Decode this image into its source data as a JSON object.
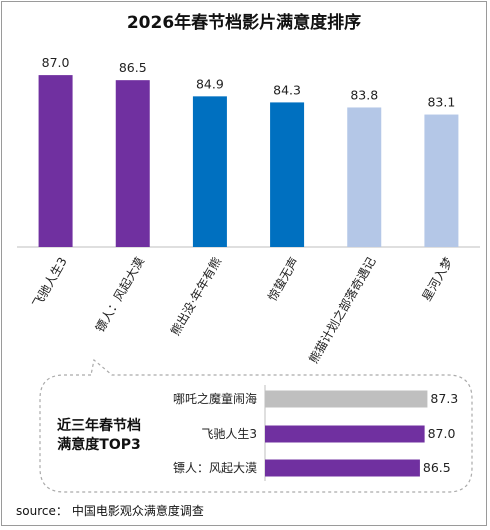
{
  "title": "2026年春节档影片满意度排序",
  "source_prefix": "source：",
  "source_text": "中国电影观众满意度调查",
  "colors": {
    "purple": "#7030A0",
    "blue": "#0070C0",
    "lightblue": "#B4C7E7",
    "gray": "#BFBFBF",
    "axis": "#BFBFBF",
    "dashed": "#AAAAAA"
  },
  "chart_data": [
    {
      "type": "bar",
      "title": "2026年春节档影片满意度排序",
      "categories": [
        "飞驰人生3",
        "镖人：风起大漠",
        "熊出没·年年有熊",
        "惊蛰无声",
        "熊猫计划之部落奇遇记",
        "星河入梦"
      ],
      "values": [
        87.0,
        86.5,
        84.9,
        84.3,
        83.8,
        83.1
      ],
      "value_labels": [
        "87.0",
        "86.5",
        "84.9",
        "84.3",
        "83.8",
        "83.1"
      ],
      "bar_colors": [
        "#7030A0",
        "#7030A0",
        "#0070C0",
        "#0070C0",
        "#B4C7E7",
        "#B4C7E7"
      ],
      "ylim": [
        70,
        88
      ],
      "grid": false,
      "xlabel": "",
      "ylabel": ""
    },
    {
      "type": "bar",
      "orientation": "horizontal",
      "title": "近三年春节档满意度TOP3",
      "title_lines": [
        "近三年春节档",
        "满意度TOP3"
      ],
      "categories": [
        "哪吒之魔童闹海",
        "飞驰人生3",
        "镖人：风起大漠"
      ],
      "values": [
        87.3,
        87.0,
        86.5
      ],
      "value_labels": [
        "87.3",
        "87.0",
        "86.5"
      ],
      "bar_colors": [
        "#BFBFBF",
        "#7030A0",
        "#7030A0"
      ],
      "xlim": [
        70,
        88
      ],
      "grid": false
    }
  ]
}
